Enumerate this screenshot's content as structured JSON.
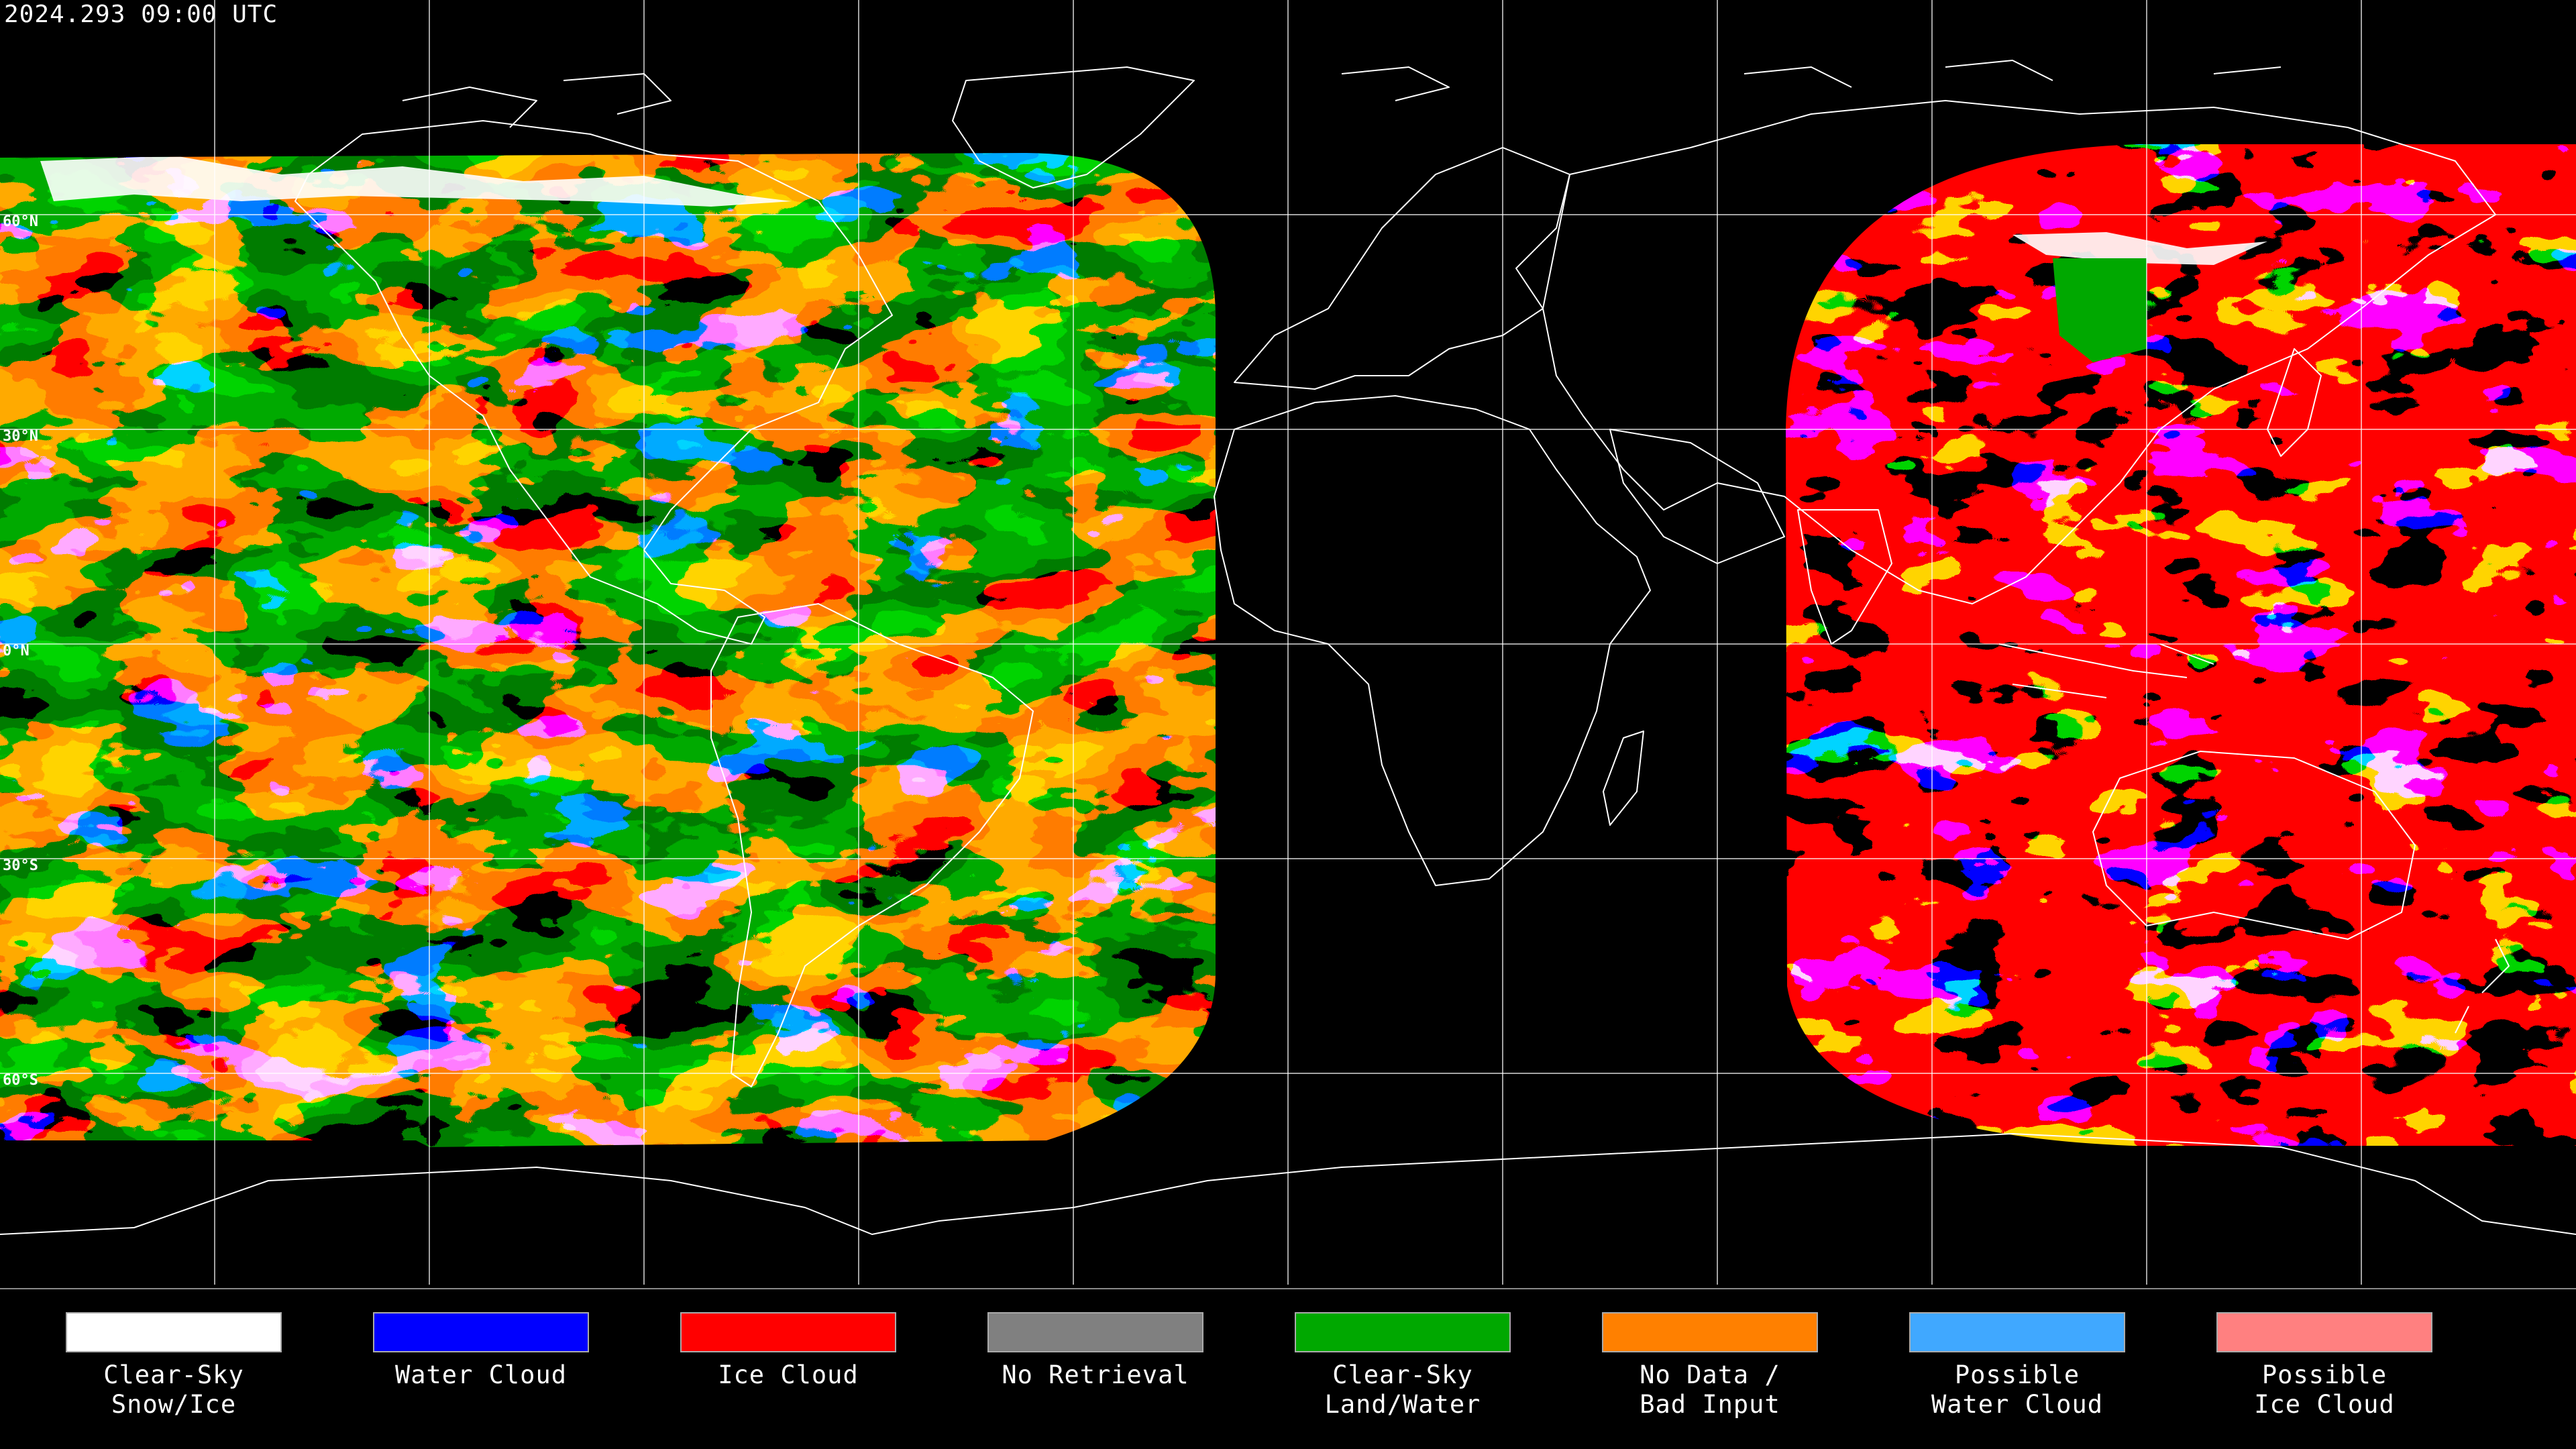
{
  "header": {
    "timestamp": "2024.293 09:00 UTC"
  },
  "latitude_labels": [
    "60°N",
    "30°N",
    "0°N",
    "30°S",
    "60°S"
  ],
  "map": {
    "projection": "equirectangular",
    "graticule_spacing_deg": 30,
    "colors": {
      "background": "#000000",
      "graticule": "#ffffff",
      "coastline": "#ffffff"
    }
  },
  "legend": {
    "items": [
      {
        "label_line1": "Clear-Sky",
        "label_line2": "Snow/Ice",
        "color": "#ffffff"
      },
      {
        "label_line1": "Water Cloud",
        "label_line2": "",
        "color": "#0000ff"
      },
      {
        "label_line1": "Ice Cloud",
        "label_line2": "",
        "color": "#ff0000"
      },
      {
        "label_line1": "No Retrieval",
        "label_line2": "",
        "color": "#808080"
      },
      {
        "label_line1": "Clear-Sky",
        "label_line2": "Land/Water",
        "color": "#00a800"
      },
      {
        "label_line1": "No Data /",
        "label_line2": "Bad Input",
        "color": "#ff8000"
      },
      {
        "label_line1": "Possible",
        "label_line2": "Water Cloud",
        "color": "#40a8ff"
      },
      {
        "label_line1": "Possible",
        "label_line2": "Ice Cloud",
        "color": "#ff8080"
      }
    ]
  }
}
